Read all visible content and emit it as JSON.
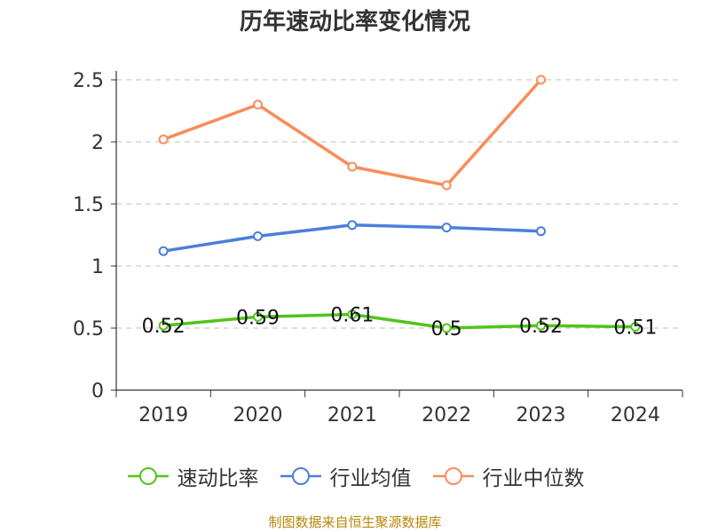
{
  "chart_data": {
    "type": "line",
    "title": "历年速动比率变化情况",
    "categories": [
      "2019",
      "2020",
      "2021",
      "2022",
      "2023",
      "2024"
    ],
    "ylim": [
      0,
      2.5
    ],
    "yticks": [
      "0",
      "0.5",
      "1",
      "1.5",
      "2",
      "2.5"
    ],
    "grid": true,
    "legend_position": "bottom",
    "series": [
      {
        "name": "速动比率",
        "color": "#52c41a",
        "values": [
          0.52,
          0.59,
          0.61,
          0.5,
          0.52,
          0.51
        ],
        "labels": [
          "0.52",
          "0.59",
          "0.61",
          "0.5",
          "0.52",
          "0.51"
        ]
      },
      {
        "name": "行业均值",
        "color": "#4a7fdc",
        "values": [
          1.12,
          1.24,
          1.33,
          1.31,
          1.28,
          null
        ]
      },
      {
        "name": "行业中位数",
        "color": "#fa8c5a",
        "values": [
          2.02,
          2.3,
          1.8,
          1.65,
          2.5,
          null
        ]
      }
    ]
  },
  "source_note": "制图数据来自恒生聚源数据库"
}
